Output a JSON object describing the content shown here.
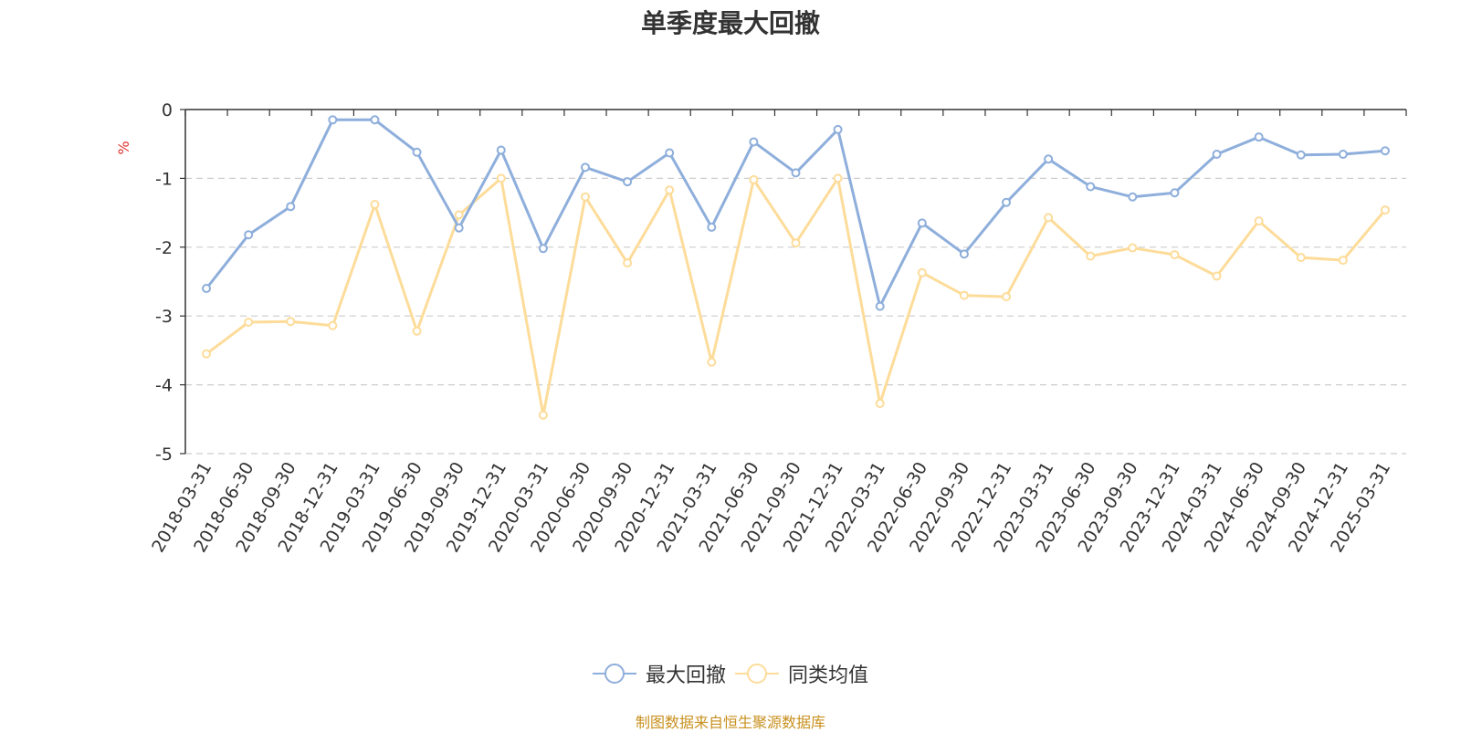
{
  "colors": {
    "series_1": "#8eaedb",
    "series_2": "#fddc9a",
    "unit": "#e0312d",
    "source": "#c8901e",
    "grid": "#cccccc",
    "axis": "#333333"
  },
  "chart_data": {
    "type": "line",
    "title": "单季度最大回撤",
    "ylabel": "%",
    "ylim": [
      -5,
      0
    ],
    "yticks": [
      0,
      -1,
      -2,
      -3,
      -4,
      -5
    ],
    "grid": "horizontal dashed",
    "legend_position": "bottom-center",
    "x": [
      "2018-03-31",
      "2018-06-30",
      "2018-09-30",
      "2018-12-31",
      "2019-03-31",
      "2019-06-30",
      "2019-09-30",
      "2019-12-31",
      "2020-03-31",
      "2020-06-30",
      "2020-09-30",
      "2020-12-31",
      "2021-03-31",
      "2021-06-30",
      "2021-09-30",
      "2021-12-31",
      "2022-03-31",
      "2022-06-30",
      "2022-09-30",
      "2022-12-31",
      "2023-03-31",
      "2023-06-30",
      "2023-09-30",
      "2023-12-31",
      "2024-03-31",
      "2024-06-30",
      "2024-09-30",
      "2024-12-31",
      "2025-03-31"
    ],
    "series": [
      {
        "name": "最大回撤",
        "values": [
          -2.6,
          -1.82,
          -1.41,
          -0.15,
          -0.15,
          -0.62,
          -1.72,
          -0.59,
          -2.02,
          -0.84,
          -1.05,
          -0.63,
          -1.71,
          -0.47,
          -0.92,
          -0.29,
          -2.86,
          -1.65,
          -2.1,
          -1.35,
          -0.72,
          -1.12,
          -1.27,
          -1.21,
          -0.65,
          -0.4,
          -0.66,
          -0.65,
          -0.6
        ]
      },
      {
        "name": "同类均值",
        "values": [
          -3.55,
          -3.09,
          -3.08,
          -3.14,
          -1.38,
          -3.22,
          -1.53,
          -1.0,
          -4.44,
          -1.27,
          -2.23,
          -1.17,
          -3.67,
          -1.02,
          -1.94,
          -1.0,
          -4.27,
          -2.37,
          -2.7,
          -2.72,
          -1.57,
          -2.13,
          -2.01,
          -2.11,
          -2.42,
          -1.62,
          -2.15,
          -2.19,
          -1.46
        ]
      }
    ]
  },
  "source_text": "制图数据来自恒生聚源数据库"
}
